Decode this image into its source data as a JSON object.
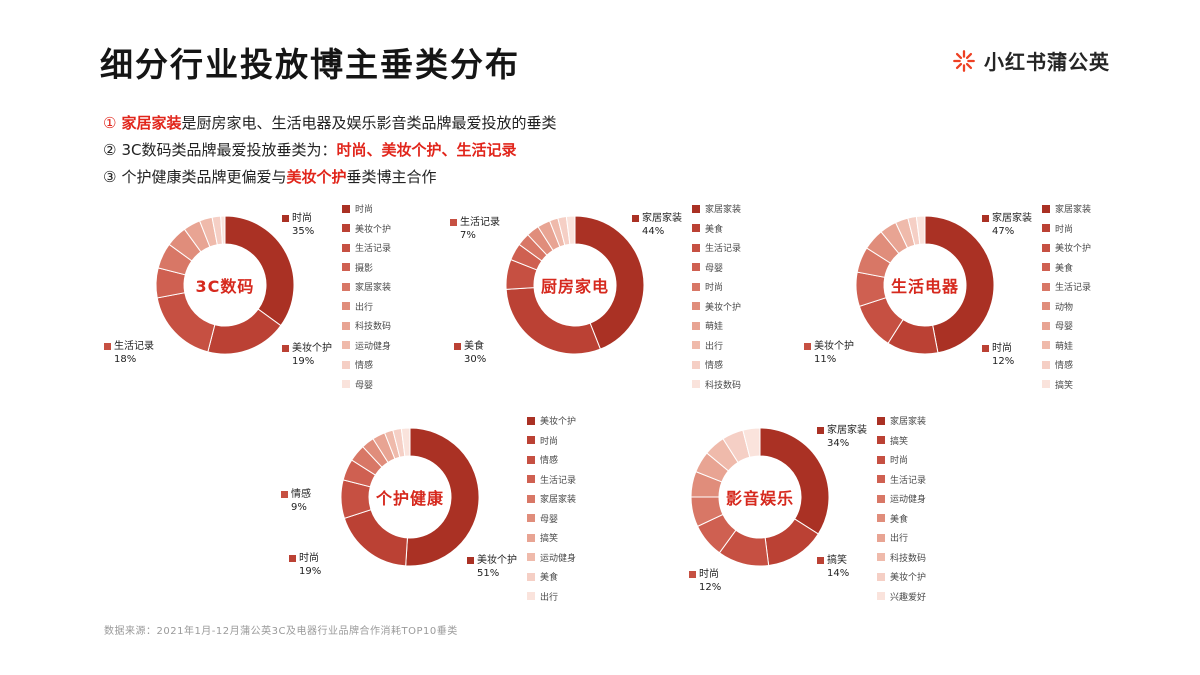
{
  "page": {
    "title": "细分行业投放博主垂类分布",
    "logo_text": "小红书蒲公英",
    "footnote": "数据来源：2021年1月-12月蒲公英3C及电器行业品牌合作消耗TOP10垂类"
  },
  "accent_color": "#e1251b",
  "palette": [
    "#aa3124",
    "#bb4134",
    "#c65042",
    "#cf6051",
    "#d87766",
    "#e08d7b",
    "#e8a493",
    "#efbaab",
    "#f5cfc5",
    "#fae3dc"
  ],
  "insights": [
    {
      "num": "①",
      "red_num": true,
      "segments": [
        {
          "text": "家居家装",
          "red": true
        },
        {
          "text": "是厨房家电、生活电器及娱乐影音类品牌最爱投放的垂类",
          "red": false
        }
      ]
    },
    {
      "num": "②",
      "red_num": false,
      "segments": [
        {
          "text": "3C数码类品牌最爱投放垂类为：",
          "red": false
        },
        {
          "text": "时尚、美妆个护、生活记录",
          "red": true
        }
      ]
    },
    {
      "num": "③",
      "red_num": false,
      "segments": [
        {
          "text": "个护健康类品牌更偏爱与",
          "red": false
        },
        {
          "text": "美妆个护",
          "red": true
        },
        {
          "text": "垂类博主合作",
          "red": false
        }
      ]
    }
  ],
  "chart_data": [
    {
      "type": "pie",
      "title": "3C数码",
      "legend_position": "right",
      "categories": [
        "时尚",
        "美妆个护",
        "生活记录",
        "摄影",
        "家居家装",
        "出行",
        "科技数码",
        "运动健身",
        "情感",
        "母婴"
      ],
      "values": [
        35,
        19,
        18,
        7,
        6,
        5,
        4,
        3,
        2,
        1
      ],
      "labels": [
        {
          "name": "时尚",
          "value": "35%",
          "pos": "tr"
        },
        {
          "name": "美妆个护",
          "value": "19%",
          "pos": "br"
        },
        {
          "name": "生活记录",
          "value": "18%",
          "pos": "bl"
        }
      ]
    },
    {
      "type": "pie",
      "title": "厨房家电",
      "legend_position": "right",
      "categories": [
        "家居家装",
        "美食",
        "生活记录",
        "母婴",
        "时尚",
        "美妆个护",
        "萌娃",
        "出行",
        "情感",
        "科技数码"
      ],
      "values": [
        44,
        30,
        7,
        4,
        3,
        3,
        3,
        2,
        2,
        2
      ],
      "labels": [
        {
          "name": "家居家装",
          "value": "44%",
          "pos": "tr"
        },
        {
          "name": "生活记录",
          "value": "7%",
          "pos": "tl"
        },
        {
          "name": "美食",
          "value": "30%",
          "pos": "bl"
        }
      ]
    },
    {
      "type": "pie",
      "title": "生活电器",
      "legend_position": "right",
      "categories": [
        "家居家装",
        "时尚",
        "美妆个护",
        "美食",
        "生活记录",
        "动物",
        "母婴",
        "萌娃",
        "情感",
        "搞笑"
      ],
      "values": [
        47,
        12,
        11,
        8,
        6,
        5,
        4,
        3,
        2,
        2
      ],
      "labels": [
        {
          "name": "家居家装",
          "value": "47%",
          "pos": "tr"
        },
        {
          "name": "时尚",
          "value": "12%",
          "pos": "br"
        },
        {
          "name": "美妆个护",
          "value": "11%",
          "pos": "bl"
        }
      ]
    },
    {
      "type": "pie",
      "title": "个护健康",
      "legend_position": "right",
      "categories": [
        "美妆个护",
        "时尚",
        "情感",
        "生活记录",
        "家居家装",
        "母婴",
        "搞笑",
        "运动健身",
        "美食",
        "出行"
      ],
      "values": [
        51,
        19,
        9,
        5,
        4,
        3,
        3,
        2,
        2,
        2
      ],
      "labels": [
        {
          "name": "美妆个护",
          "value": "51%",
          "pos": "br"
        },
        {
          "name": "时尚",
          "value": "19%",
          "pos": "bl"
        },
        {
          "name": "情感",
          "value": "9%",
          "pos": "l"
        }
      ]
    },
    {
      "type": "pie",
      "title": "影音娱乐",
      "legend_position": "right",
      "categories": [
        "家居家装",
        "搞笑",
        "时尚",
        "生活记录",
        "运动健身",
        "美食",
        "出行",
        "科技数码",
        "美妆个护",
        "兴趣爱好"
      ],
      "values": [
        34,
        14,
        12,
        8,
        7,
        6,
        5,
        5,
        5,
        4
      ],
      "labels": [
        {
          "name": "家居家装",
          "value": "34%",
          "pos": "tr"
        },
        {
          "name": "搞笑",
          "value": "14%",
          "pos": "br"
        },
        {
          "name": "时尚",
          "value": "12%",
          "pos": "b"
        }
      ]
    }
  ]
}
